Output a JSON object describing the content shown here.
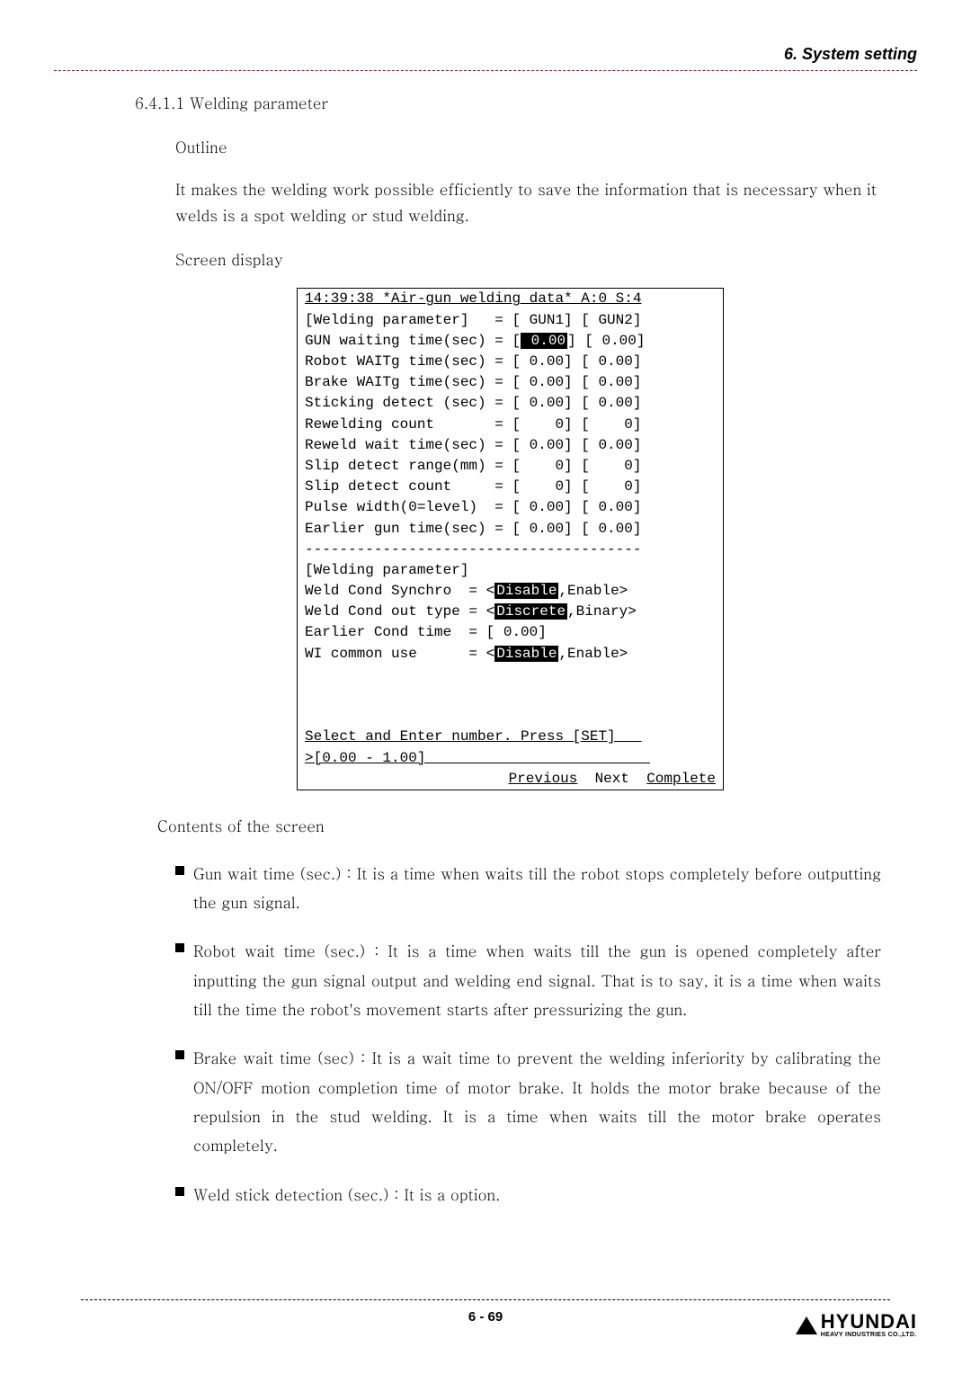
{
  "header": {
    "title": "6. System setting"
  },
  "section": {
    "number": "6.4.1.1 Welding parameter",
    "outline_label": "Outline",
    "outline_text": "It makes the welding work possible efficiently to save the information that is necessary when it welds is a spot welding or stud welding.",
    "screen_label": "Screen display",
    "contents_label": "Contents of the screen"
  },
  "terminal": {
    "header": "14:39:38 *Air-gun welding data* A:0 S:4",
    "rows": [
      {
        "label": "[Welding parameter]   ",
        "c1": "[ GUN1]",
        "c2": "[ GUN2]",
        "hilite": false
      },
      {
        "label": "GUN waiting time(sec) ",
        "c1": "[ 0.00]",
        "c2": "[ 0.00]",
        "hilite": true
      },
      {
        "label": "Robot WAITg time(sec) ",
        "c1": "[ 0.00]",
        "c2": "[ 0.00]",
        "hilite": false
      },
      {
        "label": "Brake WAITg time(sec) ",
        "c1": "[ 0.00]",
        "c2": "[ 0.00]",
        "hilite": false
      },
      {
        "label": "Sticking detect (sec) ",
        "c1": "[ 0.00]",
        "c2": "[ 0.00]",
        "hilite": false
      },
      {
        "label": "Rewelding count       ",
        "c1": "[    0]",
        "c2": "[    0]",
        "hilite": false
      },
      {
        "label": "Reweld wait time(sec) ",
        "c1": "[ 0.00]",
        "c2": "[ 0.00]",
        "hilite": false
      },
      {
        "label": "Slip detect range(mm) ",
        "c1": "[    0]",
        "c2": "[    0]",
        "hilite": false
      },
      {
        "label": "Slip detect count     ",
        "c1": "[    0]",
        "c2": "[    0]",
        "hilite": false
      },
      {
        "label": "Pulse width(0=level)  ",
        "c1": "[ 0.00]",
        "c2": "[ 0.00]",
        "hilite": false
      },
      {
        "label": "Earlier gun time(sec) ",
        "c1": "[ 0.00]",
        "c2": "[ 0.00]",
        "hilite": false
      }
    ],
    "divider": "---------------------------------------",
    "lower_header": "[Welding parameter]",
    "lower": [
      {
        "pre": "Weld Cond Synchro  = <",
        "inv": "Disable",
        "post": ",Enable>"
      },
      {
        "pre": "Weld Cond out type = <",
        "inv": "Discrete",
        "post": ",Binary>"
      },
      {
        "pre": "Earlier Cond time  = [ 0.00]",
        "inv": "",
        "post": ""
      },
      {
        "pre": "WI common use      = <",
        "inv": "Disable",
        "post": ",Enable>"
      }
    ],
    "footer1": "Select and Enter number. Press [SET]   ",
    "footer2": ">[0.00 - 1.00]                          ",
    "bottom_pre": "               ",
    "bottom_prev": "Previous",
    "bottom_mid": "  Next  ",
    "bottom_comp": "Complete"
  },
  "bullets": [
    "Gun wait time (sec.) : It is a time when waits till the robot stops completely before outputting the gun signal.",
    "Robot wait time (sec.) : It is a time when waits till the gun is opened completely after inputting the gun signal output and welding end signal. That is to say, it is a time when waits till the time the robot's movement starts after pressurizing the gun.",
    "Brake wait time (sec) : It is a wait time to prevent the welding inferiority by calibrating the ON/OFF motion completion time of motor brake. It holds the motor brake because of the repulsion in the stud welding. It is a time when waits till the motor brake operates completely.",
    "Weld stick detection (sec.) : It is a option."
  ],
  "footer": {
    "page": "6 - 69",
    "logo_main": "HYUNDAI",
    "logo_sub": "HEAVY INDUSTRIES CO.,LTD."
  }
}
